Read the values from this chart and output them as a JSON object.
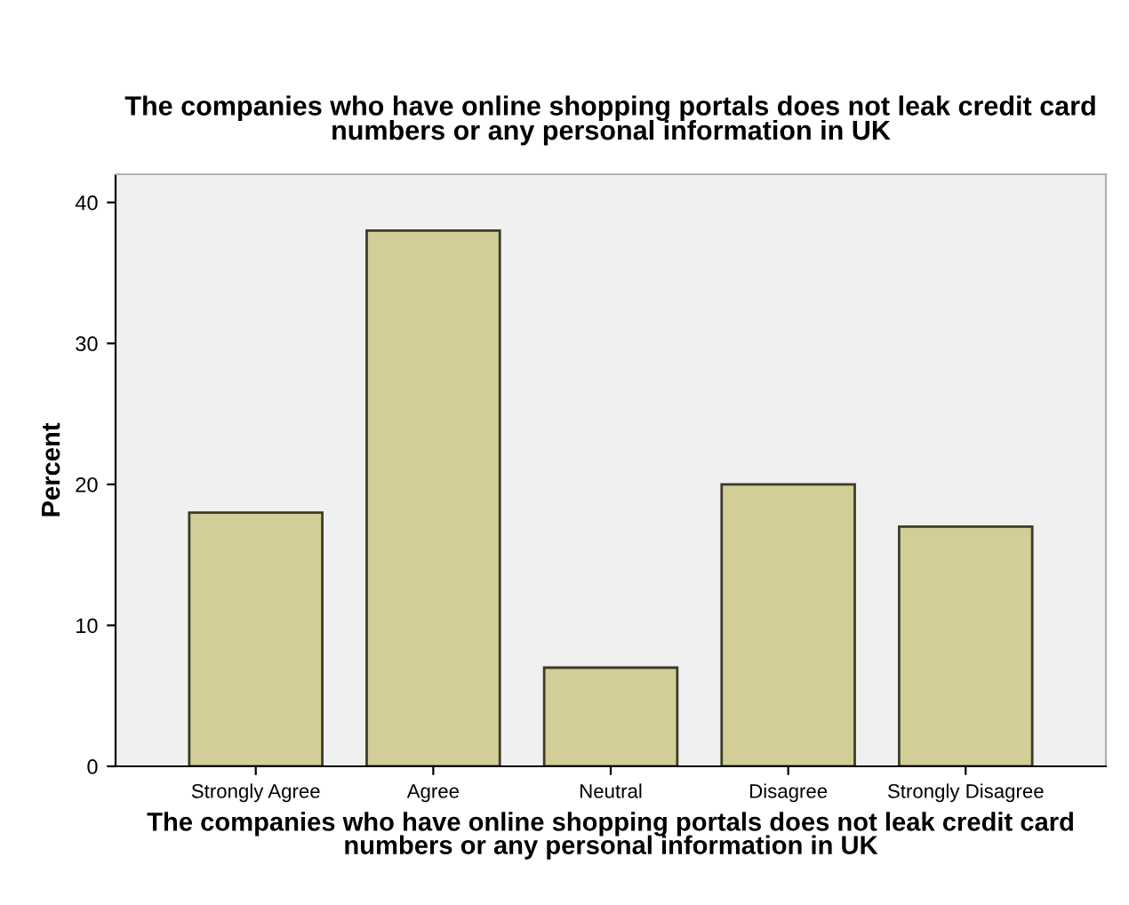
{
  "chart_data": {
    "type": "bar",
    "title": "The companies who have online shopping portals does not leak credit card\nnumbers or any personal information in UK",
    "xlabel": "The companies who have online shopping portals does not leak credit card\nnumbers or any personal information in UK",
    "ylabel": "Percent",
    "categories": [
      "Strongly Agree",
      "Agree",
      "Neutral",
      "Disagree",
      "Strongly Disagree"
    ],
    "values": [
      18,
      38,
      7,
      20,
      17
    ],
    "color": "#d3ce98",
    "ylim": [
      0,
      42
    ],
    "yticks": [
      0,
      10,
      20,
      30,
      40
    ],
    "grid": false
  }
}
